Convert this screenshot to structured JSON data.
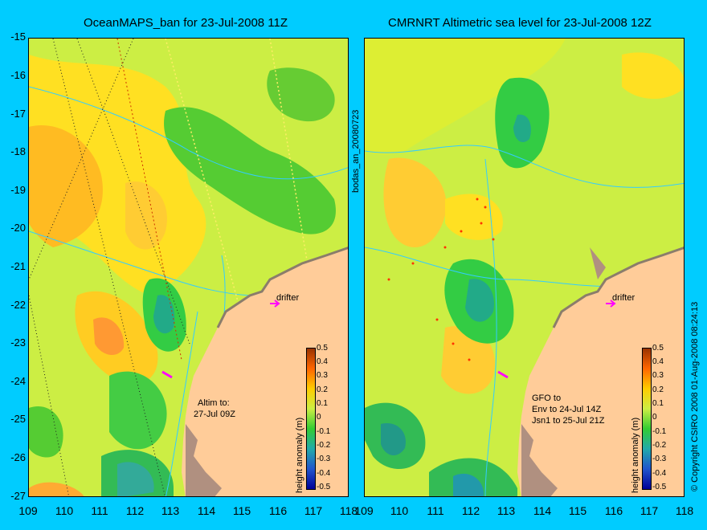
{
  "left_panel": {
    "title": "OceanMAPS_ban for 23-Jul-2008 11Z",
    "drifter_label": "drifter",
    "altim_note_line1": "Altim to:",
    "altim_note_line2": "27-Jul 09Z"
  },
  "right_panel": {
    "title": "CMRNRT Altimetric sea level  for 23-Jul-2008 12Z",
    "drifter_label": "drifter",
    "gfo_line1": "GFO to",
    "gfo_line2": "Env to 24-Jul 14Z",
    "gfo_line3": "Jsn1 to 25-Jul 21Z"
  },
  "middle_label": "bodas_an_20080723",
  "right_margin_label": "© Copyright CSIRO 2008   01-Aug-2008 08:24:13",
  "y_axis": [
    "-15",
    "-16",
    "-17",
    "-18",
    "-19",
    "-20",
    "-21",
    "-22",
    "-23",
    "-24",
    "-25",
    "-26",
    "-27"
  ],
  "x_axis_left": [
    "109",
    "110",
    "111",
    "112",
    "113",
    "114",
    "115",
    "116",
    "117",
    "118"
  ],
  "x_axis_right": [
    "109",
    "110",
    "111",
    "112",
    "113",
    "114",
    "115",
    "116",
    "117",
    "118"
  ],
  "colorbar": {
    "title": "height anomaly (m)",
    "ticks": [
      "0.5",
      "0.4",
      "0.3",
      "0.2",
      "0.1",
      "0",
      "-0.1",
      "-0.2",
      "-0.3",
      "-0.4",
      "-0.5"
    ]
  },
  "colors": {
    "background": "#00ccff",
    "land": "#ffcc99",
    "coast_dark": "#b09080",
    "drifter_marker": "#ff00ff",
    "contour": "#33ccff"
  }
}
